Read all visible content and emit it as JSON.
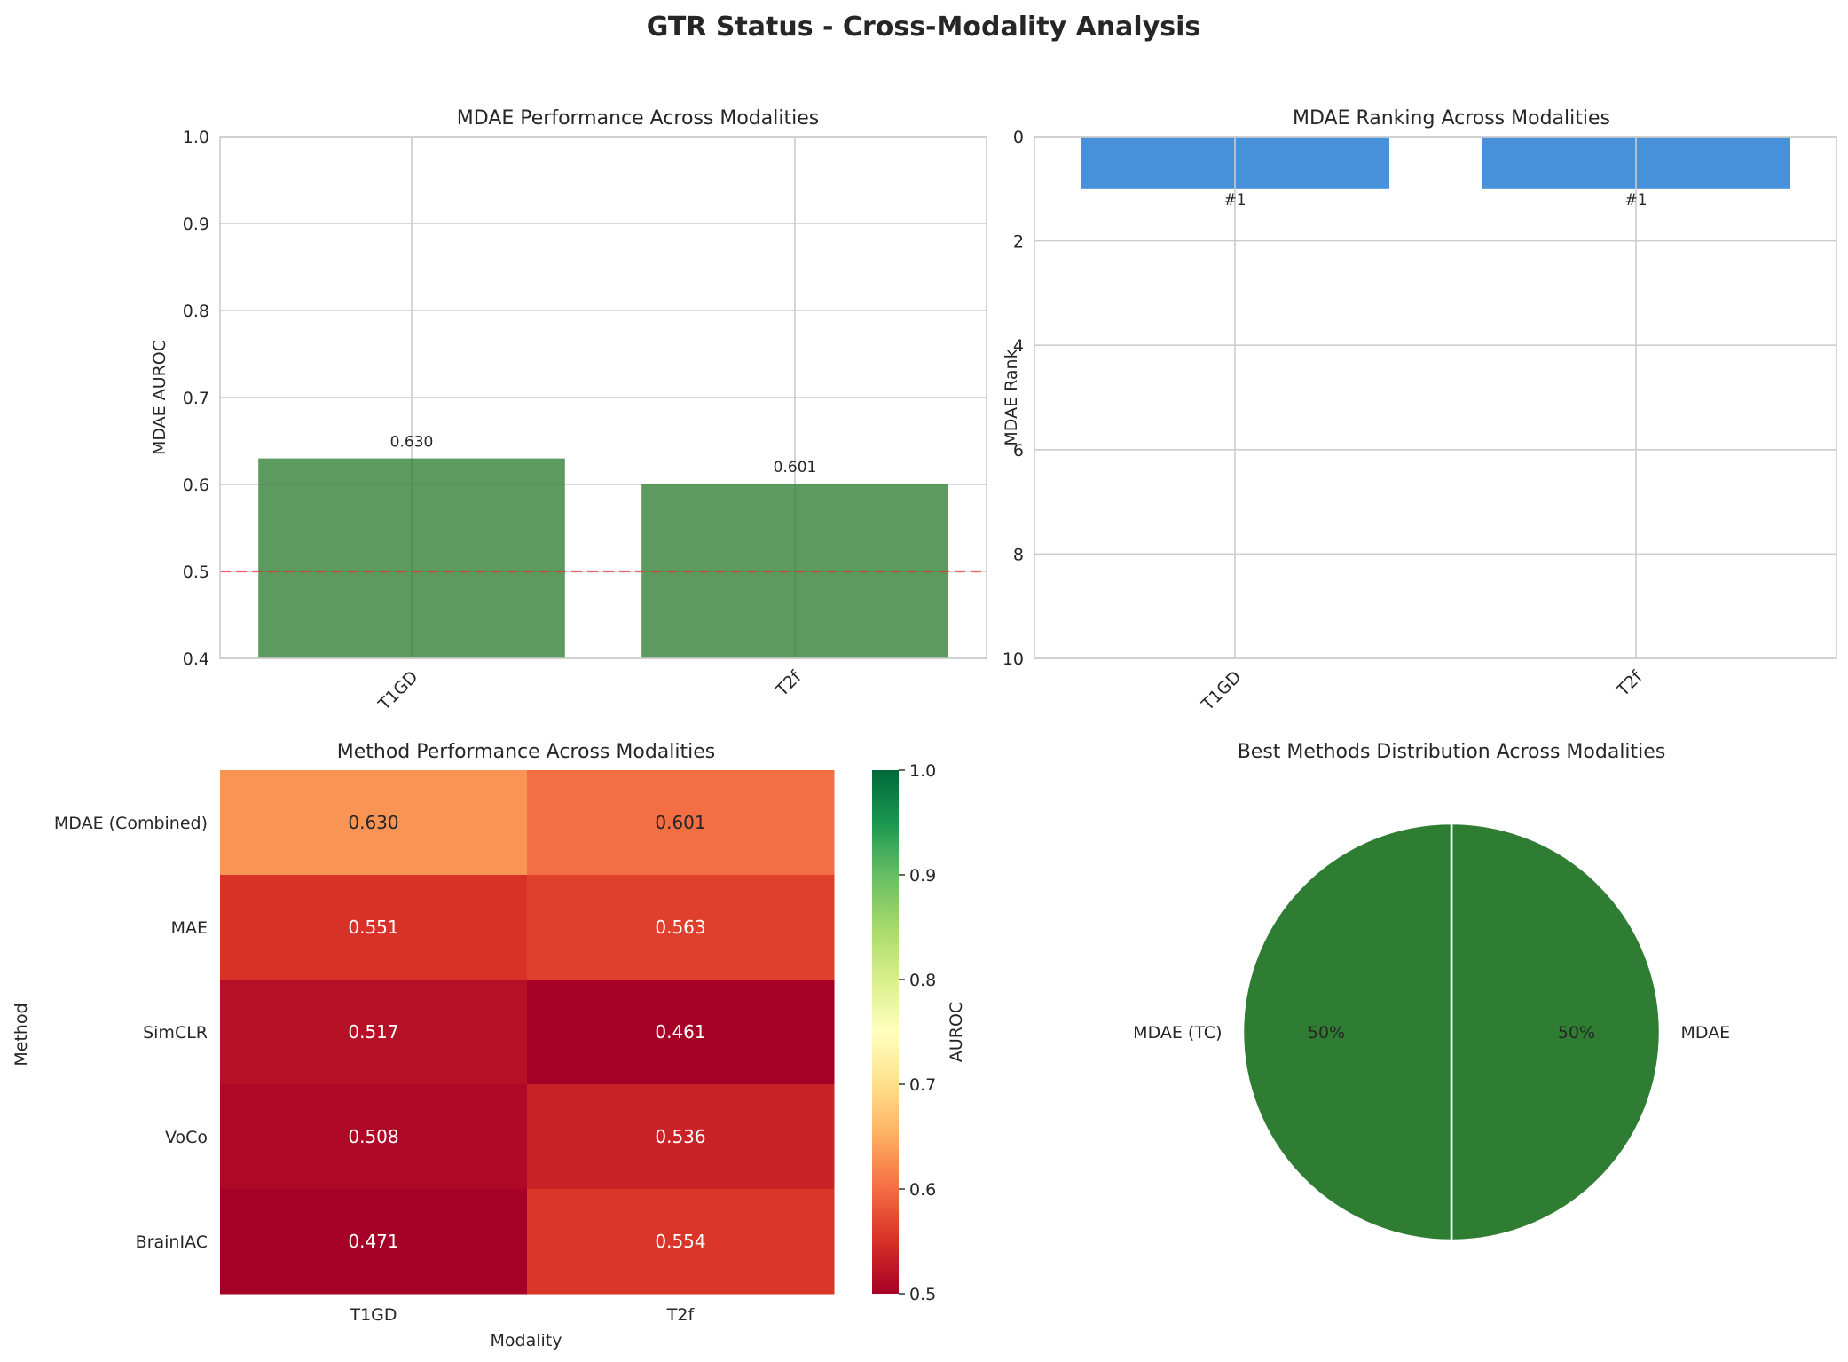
{
  "suptitle": "GTR Status - Cross-Modality Analysis",
  "colors": {
    "bar_green": "#2e7d32",
    "bar_blue": "#1e78d2",
    "refline": "#e53935",
    "pie_green": "#2e7d32"
  },
  "chart_data": [
    {
      "type": "bar",
      "title": "MDAE Performance Across Modalities",
      "xlabel": "",
      "ylabel": "MDAE AUROC",
      "categories": [
        "T1GD",
        "T2f"
      ],
      "values": [
        0.63,
        0.601
      ],
      "value_labels": [
        "0.630",
        "0.601"
      ],
      "ylim": [
        0.4,
        1.0
      ],
      "yticks": [
        "0.4",
        "0.5",
        "0.6",
        "0.7",
        "0.8",
        "0.9",
        "1.0"
      ],
      "reference_line": 0.5,
      "grid": true
    },
    {
      "type": "bar",
      "title": "MDAE Ranking Across Modalities",
      "xlabel": "",
      "ylabel": "MDAE Rank",
      "categories": [
        "T1GD",
        "T2f"
      ],
      "values": [
        1,
        1
      ],
      "value_labels": [
        "#1",
        "#1"
      ],
      "ylim": [
        0,
        10
      ],
      "y_inverted": true,
      "yticks": [
        "0",
        "2",
        "4",
        "6",
        "8",
        "10"
      ],
      "grid": true
    },
    {
      "type": "heatmap",
      "title": "Method Performance Across Modalities",
      "xlabel": "Modality",
      "ylabel": "Method",
      "columns": [
        "T1GD",
        "T2f"
      ],
      "rows": [
        "MDAE (Combined)",
        "MAE",
        "SimCLR",
        "VoCo",
        "BrainIAC"
      ],
      "values": [
        [
          0.63,
          0.601
        ],
        [
          0.551,
          0.563
        ],
        [
          0.517,
          0.461
        ],
        [
          0.508,
          0.536
        ],
        [
          0.471,
          0.554
        ]
      ],
      "cell_labels": [
        [
          "0.630",
          "0.601"
        ],
        [
          "0.551",
          "0.563"
        ],
        [
          "0.517",
          "0.461"
        ],
        [
          "0.508",
          "0.536"
        ],
        [
          "0.471",
          "0.554"
        ]
      ],
      "colorbar_label": "AUROC",
      "colorbar_range": [
        0.5,
        1.0
      ],
      "colorbar_ticks": [
        "0.5",
        "0.6",
        "0.7",
        "0.8",
        "0.9",
        "1.0"
      ],
      "colormap": "RdYlGn"
    },
    {
      "type": "pie",
      "title": "Best Methods Distribution Across Modalities",
      "labels": [
        "MDAE",
        "MDAE (TC)"
      ],
      "values": [
        50,
        50
      ],
      "pct_labels": [
        "50%",
        "50%"
      ]
    }
  ]
}
